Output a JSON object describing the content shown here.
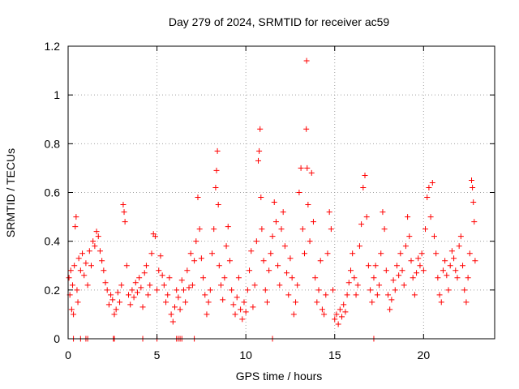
{
  "chart_data": {
    "type": "scatter",
    "title": "Day 279 of 2024, SRMTID for receiver ac59",
    "xlabel": "GPS time / hours",
    "ylabel": "SRMTID / TECUs",
    "xlim": [
      0,
      24
    ],
    "ylim": [
      0,
      1.2
    ],
    "xticks": [
      {
        "value": 0,
        "label": "0"
      },
      {
        "value": 5,
        "label": "5"
      },
      {
        "value": 10,
        "label": "10"
      },
      {
        "value": 15,
        "label": "15"
      },
      {
        "value": 20,
        "label": "20"
      }
    ],
    "yticks": [
      {
        "value": 0,
        "label": "0"
      },
      {
        "value": 0.2,
        "label": "0.2"
      },
      {
        "value": 0.4,
        "label": "0.4"
      },
      {
        "value": 0.6,
        "label": "0.6"
      },
      {
        "value": 0.8,
        "label": "0.8"
      },
      {
        "value": 1.0,
        "label": "1"
      },
      {
        "value": 1.2,
        "label": "1.2"
      }
    ],
    "grid": true,
    "marker": "+",
    "marker_color": "#ff0000",
    "points": [
      [
        0.05,
        0.25
      ],
      [
        0.1,
        0.18
      ],
      [
        0.15,
        0.28
      ],
      [
        0.2,
        0.12
      ],
      [
        0.25,
        0.22
      ],
      [
        0.3,
        0.1
      ],
      [
        0.35,
        0.3
      ],
      [
        0.4,
        0.46
      ],
      [
        0.45,
        0.5
      ],
      [
        0.5,
        0.2
      ],
      [
        0.55,
        0.15
      ],
      [
        0.6,
        0.33
      ],
      [
        0.7,
        0.28
      ],
      [
        0.8,
        0.35
      ],
      [
        0.9,
        0.26
      ],
      [
        1.0,
        0.31
      ],
      [
        1.1,
        0.22
      ],
      [
        1.2,
        0.36
      ],
      [
        1.3,
        0.3
      ],
      [
        1.4,
        0.4
      ],
      [
        1.5,
        0.38
      ],
      [
        1.6,
        0.44
      ],
      [
        1.7,
        0.42
      ],
      [
        1.8,
        0.36
      ],
      [
        1.9,
        0.32
      ],
      [
        2.0,
        0.28
      ],
      [
        2.1,
        0.23
      ],
      [
        2.2,
        0.2
      ],
      [
        2.3,
        0.14
      ],
      [
        2.4,
        0.18
      ],
      [
        2.5,
        0.16
      ],
      [
        2.6,
        0.1
      ],
      [
        2.7,
        0.12
      ],
      [
        2.8,
        0.19
      ],
      [
        2.9,
        0.15
      ],
      [
        3.0,
        0.22
      ],
      [
        3.1,
        0.55
      ],
      [
        3.15,
        0.52
      ],
      [
        3.2,
        0.48
      ],
      [
        3.3,
        0.3
      ],
      [
        3.4,
        0.18
      ],
      [
        3.5,
        0.14
      ],
      [
        3.6,
        0.2
      ],
      [
        3.7,
        0.17
      ],
      [
        3.8,
        0.23
      ],
      [
        3.9,
        0.19
      ],
      [
        4.0,
        0.25
      ],
      [
        4.1,
        0.21
      ],
      [
        4.2,
        0.13
      ],
      [
        4.3,
        0.27
      ],
      [
        4.4,
        0.3
      ],
      [
        4.5,
        0.18
      ],
      [
        4.6,
        0.22
      ],
      [
        4.7,
        0.35
      ],
      [
        4.8,
        0.43
      ],
      [
        4.9,
        0.42
      ],
      [
        5.0,
        0.2
      ],
      [
        5.1,
        0.28
      ],
      [
        5.2,
        0.34
      ],
      [
        5.3,
        0.26
      ],
      [
        5.4,
        0.22
      ],
      [
        5.5,
        0.15
      ],
      [
        5.6,
        0.18
      ],
      [
        5.7,
        0.25
      ],
      [
        5.8,
        0.1
      ],
      [
        5.9,
        0.07
      ],
      [
        6.0,
        0.13
      ],
      [
        6.1,
        0.2
      ],
      [
        6.2,
        0.17
      ],
      [
        6.3,
        0.12
      ],
      [
        6.4,
        0.24
      ],
      [
        6.5,
        0.2
      ],
      [
        6.6,
        0.15
      ],
      [
        6.7,
        0.28
      ],
      [
        6.8,
        0.21
      ],
      [
        6.9,
        0.35
      ],
      [
        7.0,
        0.22
      ],
      [
        7.1,
        0.32
      ],
      [
        7.2,
        0.4
      ],
      [
        7.3,
        0.58
      ],
      [
        7.4,
        0.45
      ],
      [
        7.5,
        0.33
      ],
      [
        7.6,
        0.25
      ],
      [
        7.7,
        0.18
      ],
      [
        7.8,
        0.1
      ],
      [
        7.9,
        0.15
      ],
      [
        8.0,
        0.2
      ],
      [
        8.1,
        0.35
      ],
      [
        8.2,
        0.45
      ],
      [
        8.3,
        0.62
      ],
      [
        8.35,
        0.69
      ],
      [
        8.4,
        0.77
      ],
      [
        8.45,
        0.55
      ],
      [
        8.5,
        0.3
      ],
      [
        8.6,
        0.22
      ],
      [
        8.7,
        0.16
      ],
      [
        8.8,
        0.25
      ],
      [
        8.9,
        0.38
      ],
      [
        9.0,
        0.46
      ],
      [
        9.1,
        0.32
      ],
      [
        9.2,
        0.2
      ],
      [
        9.3,
        0.14
      ],
      [
        9.4,
        0.1
      ],
      [
        9.5,
        0.17
      ],
      [
        9.6,
        0.25
      ],
      [
        9.7,
        0.12
      ],
      [
        9.8,
        0.08
      ],
      [
        9.9,
        0.15
      ],
      [
        10.0,
        0.11
      ],
      [
        10.1,
        0.2
      ],
      [
        10.2,
        0.28
      ],
      [
        10.3,
        0.36
      ],
      [
        10.4,
        0.13
      ],
      [
        10.5,
        0.22
      ],
      [
        10.6,
        0.4
      ],
      [
        10.7,
        0.73
      ],
      [
        10.75,
        0.77
      ],
      [
        10.8,
        0.86
      ],
      [
        10.85,
        0.58
      ],
      [
        10.9,
        0.45
      ],
      [
        11.0,
        0.32
      ],
      [
        11.1,
        0.2
      ],
      [
        11.2,
        0.15
      ],
      [
        11.3,
        0.28
      ],
      [
        11.4,
        0.35
      ],
      [
        11.5,
        0.42
      ],
      [
        11.6,
        0.56
      ],
      [
        11.7,
        0.48
      ],
      [
        11.8,
        0.3
      ],
      [
        11.9,
        0.22
      ],
      [
        12.0,
        0.45
      ],
      [
        12.1,
        0.52
      ],
      [
        12.2,
        0.38
      ],
      [
        12.3,
        0.27
      ],
      [
        12.4,
        0.18
      ],
      [
        12.5,
        0.33
      ],
      [
        12.6,
        0.25
      ],
      [
        12.7,
        0.1
      ],
      [
        12.8,
        0.15
      ],
      [
        12.9,
        0.22
      ],
      [
        13.0,
        0.6
      ],
      [
        13.1,
        0.7
      ],
      [
        13.2,
        0.45
      ],
      [
        13.3,
        0.35
      ],
      [
        13.4,
        0.86
      ],
      [
        13.42,
        1.14
      ],
      [
        13.45,
        0.7
      ],
      [
        13.5,
        0.55
      ],
      [
        13.6,
        0.4
      ],
      [
        13.7,
        0.68
      ],
      [
        13.8,
        0.48
      ],
      [
        13.9,
        0.25
      ],
      [
        14.0,
        0.15
      ],
      [
        14.1,
        0.2
      ],
      [
        14.2,
        0.32
      ],
      [
        14.3,
        0.12
      ],
      [
        14.4,
        0.1
      ],
      [
        14.5,
        0.18
      ],
      [
        14.6,
        0.35
      ],
      [
        14.7,
        0.52
      ],
      [
        14.8,
        0.45
      ],
      [
        14.9,
        0.2
      ],
      [
        15.0,
        0.08
      ],
      [
        15.1,
        0.1
      ],
      [
        15.2,
        0.06
      ],
      [
        15.3,
        0.12
      ],
      [
        15.4,
        0.09
      ],
      [
        15.5,
        0.14
      ],
      [
        15.6,
        0.11
      ],
      [
        15.7,
        0.18
      ],
      [
        15.8,
        0.23
      ],
      [
        15.9,
        0.28
      ],
      [
        16.0,
        0.35
      ],
      [
        16.1,
        0.25
      ],
      [
        16.2,
        0.18
      ],
      [
        16.3,
        0.22
      ],
      [
        16.4,
        0.38
      ],
      [
        16.5,
        0.47
      ],
      [
        16.6,
        0.62
      ],
      [
        16.7,
        0.67
      ],
      [
        16.8,
        0.5
      ],
      [
        16.9,
        0.3
      ],
      [
        17.0,
        0.2
      ],
      [
        17.1,
        0.15
      ],
      [
        17.2,
        0.25
      ],
      [
        17.3,
        0.3
      ],
      [
        17.4,
        0.18
      ],
      [
        17.5,
        0.22
      ],
      [
        17.6,
        0.35
      ],
      [
        17.7,
        0.52
      ],
      [
        17.8,
        0.45
      ],
      [
        17.9,
        0.28
      ],
      [
        18.0,
        0.18
      ],
      [
        18.1,
        0.12
      ],
      [
        18.2,
        0.16
      ],
      [
        18.3,
        0.24
      ],
      [
        18.4,
        0.2
      ],
      [
        18.5,
        0.3
      ],
      [
        18.6,
        0.26
      ],
      [
        18.7,
        0.35
      ],
      [
        18.8,
        0.28
      ],
      [
        18.9,
        0.22
      ],
      [
        19.0,
        0.38
      ],
      [
        19.1,
        0.5
      ],
      [
        19.2,
        0.42
      ],
      [
        19.3,
        0.32
      ],
      [
        19.4,
        0.25
      ],
      [
        19.5,
        0.18
      ],
      [
        19.6,
        0.27
      ],
      [
        19.7,
        0.33
      ],
      [
        19.8,
        0.3
      ],
      [
        19.9,
        0.35
      ],
      [
        20.0,
        0.28
      ],
      [
        20.1,
        0.45
      ],
      [
        20.2,
        0.58
      ],
      [
        20.3,
        0.62
      ],
      [
        20.4,
        0.5
      ],
      [
        20.5,
        0.64
      ],
      [
        20.6,
        0.42
      ],
      [
        20.7,
        0.35
      ],
      [
        20.8,
        0.25
      ],
      [
        20.9,
        0.18
      ],
      [
        21.0,
        0.15
      ],
      [
        21.1,
        0.28
      ],
      [
        21.2,
        0.32
      ],
      [
        21.3,
        0.26
      ],
      [
        21.4,
        0.2
      ],
      [
        21.5,
        0.3
      ],
      [
        21.6,
        0.36
      ],
      [
        21.7,
        0.33
      ],
      [
        21.8,
        0.28
      ],
      [
        21.9,
        0.25
      ],
      [
        22.0,
        0.38
      ],
      [
        22.1,
        0.42
      ],
      [
        22.2,
        0.3
      ],
      [
        22.3,
        0.2
      ],
      [
        22.4,
        0.15
      ],
      [
        22.5,
        0.25
      ],
      [
        22.6,
        0.35
      ],
      [
        22.7,
        0.65
      ],
      [
        22.75,
        0.62
      ],
      [
        22.8,
        0.56
      ],
      [
        22.85,
        0.48
      ],
      [
        22.9,
        0.32
      ]
    ],
    "zero_points": [
      0.3,
      0.7,
      1.0,
      1.1,
      2.55,
      2.6,
      4.2,
      5.0,
      6.1,
      6.2,
      6.3,
      6.4,
      7.1,
      11.5,
      17.2
    ]
  }
}
